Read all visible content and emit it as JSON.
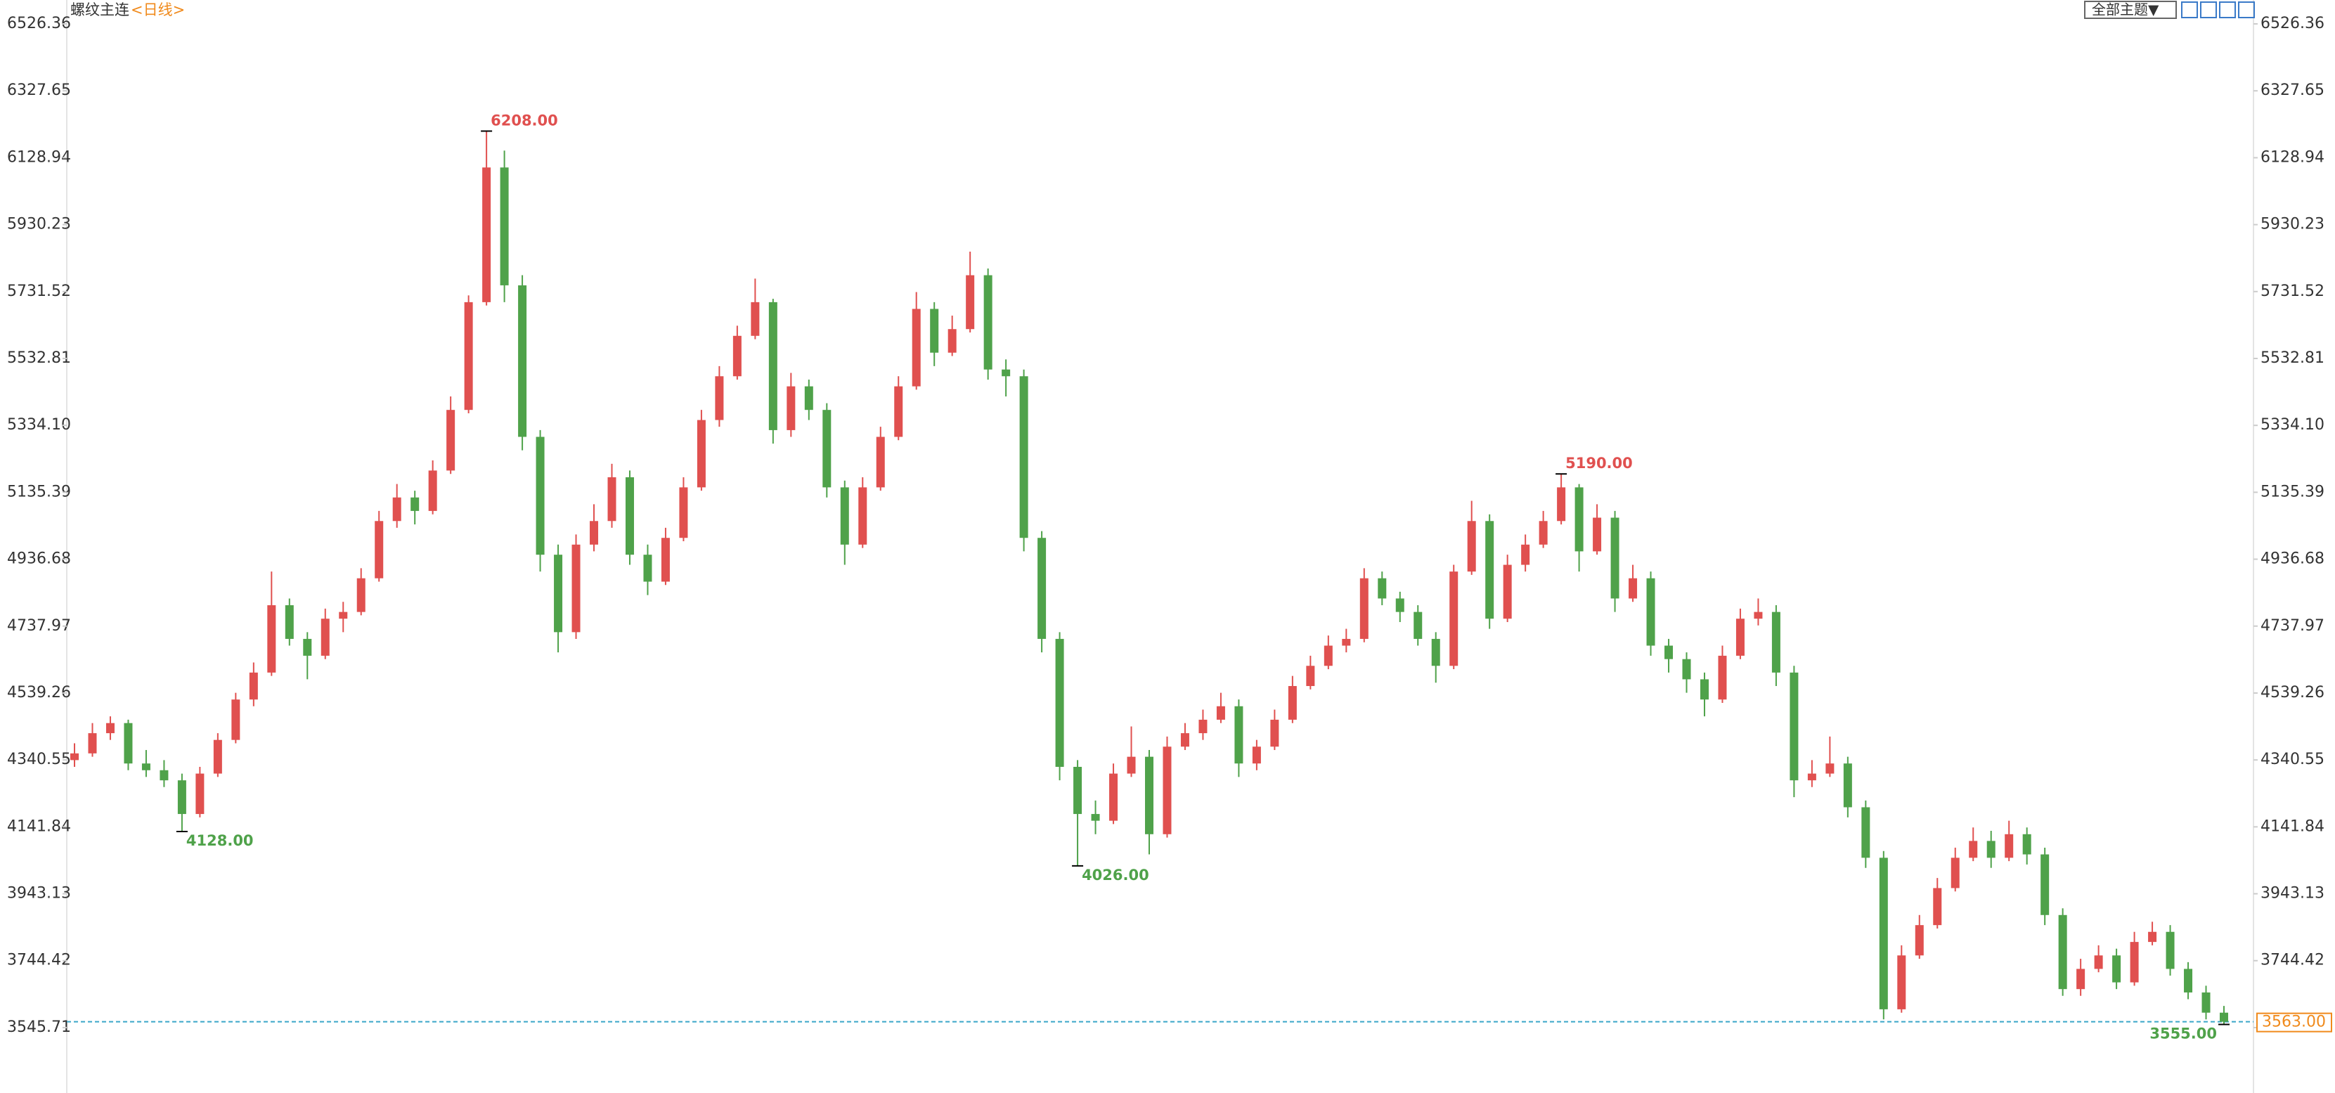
{
  "toolbar": {
    "theme_button": "全部主题▼"
  },
  "chart_data": {
    "type": "candlestick",
    "title": "螺纹主连",
    "subtitle": "<日线>",
    "up_color": "#e0504f",
    "down_color": "#4fa24a",
    "ylim": [
      3355.6,
      6526.36
    ],
    "yticks": [
      6526.36,
      6327.65,
      6128.94,
      5930.23,
      5731.52,
      5532.81,
      {
        "value": 5334.1,
        "label": "5334.10"
      },
      5135.39,
      4936.68,
      4737.97,
      4539.26,
      4340.55,
      4141.84,
      3943.13,
      3744.42,
      3545.71
    ],
    "grid": false,
    "annotations": [
      {
        "label": "6208.00",
        "value": 6208
      },
      {
        "label": "4128.00",
        "value": 4128
      },
      {
        "label": "4026.00",
        "value": 4026
      },
      {
        "label": "5190.00",
        "value": 5190
      },
      {
        "label": "3555.00",
        "value": 3555
      }
    ],
    "last_price": {
      "value": 3563,
      "label": "3563.00"
    },
    "ohlc": [
      [
        4340,
        4390,
        4320,
        4360
      ],
      [
        4360,
        4450,
        4350,
        4420
      ],
      [
        4420,
        4470,
        4400,
        4450
      ],
      [
        4450,
        4460,
        4310,
        4330
      ],
      [
        4330,
        4370,
        4290,
        4310
      ],
      [
        4310,
        4340,
        4260,
        4280
      ],
      [
        4280,
        4300,
        4128,
        4180
      ],
      [
        4180,
        4320,
        4170,
        4300
      ],
      [
        4300,
        4420,
        4290,
        4400
      ],
      [
        4400,
        4540,
        4390,
        4520
      ],
      [
        4520,
        4630,
        4500,
        4600
      ],
      [
        4600,
        4900,
        4590,
        4800
      ],
      [
        4800,
        4820,
        4680,
        4700
      ],
      [
        4700,
        4720,
        4580,
        4650
      ],
      [
        4650,
        4790,
        4640,
        4760
      ],
      [
        4760,
        4810,
        4720,
        4780
      ],
      [
        4780,
        4910,
        4770,
        4880
      ],
      [
        4880,
        5080,
        4870,
        5050
      ],
      [
        5050,
        5160,
        5030,
        5120
      ],
      [
        5120,
        5140,
        5040,
        5080
      ],
      [
        5080,
        5230,
        5070,
        5200
      ],
      [
        5200,
        5420,
        5190,
        5380
      ],
      [
        5380,
        5720,
        5370,
        5700
      ],
      [
        5700,
        6208,
        5690,
        6100
      ],
      [
        6100,
        6150,
        5700,
        5750
      ],
      [
        5750,
        5780,
        5260,
        5300
      ],
      [
        5300,
        5320,
        4900,
        4950
      ],
      [
        4950,
        4980,
        4660,
        4720
      ],
      [
        4720,
        5010,
        4700,
        4980
      ],
      [
        4980,
        5100,
        4960,
        5050
      ],
      [
        5050,
        5220,
        5030,
        5180
      ],
      [
        5180,
        5200,
        4920,
        4950
      ],
      [
        4950,
        4980,
        4830,
        4870
      ],
      [
        4870,
        5030,
        4860,
        5000
      ],
      [
        5000,
        5180,
        4990,
        5150
      ],
      [
        5150,
        5380,
        5140,
        5350
      ],
      [
        5350,
        5510,
        5330,
        5480
      ],
      [
        5480,
        5630,
        5470,
        5600
      ],
      [
        5600,
        5770,
        5590,
        5700
      ],
      [
        5700,
        5710,
        5280,
        5320
      ],
      [
        5320,
        5490,
        5300,
        5450
      ],
      [
        5450,
        5470,
        5350,
        5380
      ],
      [
        5380,
        5400,
        5120,
        5150
      ],
      [
        5150,
        5170,
        4920,
        4980
      ],
      [
        4980,
        5180,
        4970,
        5150
      ],
      [
        5150,
        5330,
        5140,
        5300
      ],
      [
        5300,
        5480,
        5290,
        5450
      ],
      [
        5450,
        5730,
        5440,
        5680
      ],
      [
        5680,
        5700,
        5510,
        5550
      ],
      [
        5550,
        5660,
        5540,
        5620
      ],
      [
        5620,
        5850,
        5610,
        5780
      ],
      [
        5780,
        5800,
        5470,
        5500
      ],
      [
        5500,
        5530,
        5420,
        5480
      ],
      [
        5480,
        5500,
        4960,
        5000
      ],
      [
        5000,
        5020,
        4660,
        4700
      ],
      [
        4700,
        4720,
        4280,
        4320
      ],
      [
        4320,
        4340,
        4026,
        4180
      ],
      [
        4180,
        4220,
        4120,
        4160
      ],
      [
        4160,
        4330,
        4150,
        4300
      ],
      [
        4300,
        4440,
        4290,
        4350
      ],
      [
        4350,
        4370,
        4060,
        4120
      ],
      [
        4120,
        4410,
        4110,
        4380
      ],
      [
        4380,
        4450,
        4370,
        4420
      ],
      [
        4420,
        4490,
        4400,
        4460
      ],
      [
        4460,
        4540,
        4450,
        4500
      ],
      [
        4500,
        4520,
        4290,
        4330
      ],
      [
        4330,
        4400,
        4310,
        4380
      ],
      [
        4380,
        4490,
        4370,
        4460
      ],
      [
        4460,
        4590,
        4450,
        4560
      ],
      [
        4560,
        4650,
        4550,
        4620
      ],
      [
        4620,
        4710,
        4610,
        4680
      ],
      [
        4680,
        4730,
        4660,
        4700
      ],
      [
        4700,
        4910,
        4690,
        4880
      ],
      [
        4880,
        4900,
        4800,
        4820
      ],
      [
        4820,
        4840,
        4750,
        4780
      ],
      [
        4780,
        4800,
        4680,
        4700
      ],
      [
        4700,
        4720,
        4570,
        4620
      ],
      [
        4620,
        4920,
        4610,
        4900
      ],
      [
        4900,
        5110,
        4890,
        5050
      ],
      [
        5050,
        5070,
        4730,
        4760
      ],
      [
        4760,
        4950,
        4750,
        4920
      ],
      [
        4920,
        5010,
        4900,
        4980
      ],
      [
        4980,
        5080,
        4970,
        5050
      ],
      [
        5050,
        5190,
        5040,
        5150
      ],
      [
        5150,
        5160,
        4900,
        4960
      ],
      [
        4960,
        5100,
        4950,
        5060
      ],
      [
        5060,
        5080,
        4780,
        4820
      ],
      [
        4820,
        4920,
        4810,
        4880
      ],
      [
        4880,
        4900,
        4650,
        4680
      ],
      [
        4680,
        4700,
        4600,
        4640
      ],
      [
        4640,
        4660,
        4540,
        4580
      ],
      [
        4580,
        4600,
        4470,
        4520
      ],
      [
        4520,
        4680,
        4510,
        4650
      ],
      [
        4650,
        4790,
        4640,
        4760
      ],
      [
        4760,
        4820,
        4740,
        4780
      ],
      [
        4780,
        4800,
        4560,
        4600
      ],
      [
        4600,
        4620,
        4230,
        4280
      ],
      [
        4280,
        4340,
        4260,
        4300
      ],
      [
        4300,
        4410,
        4290,
        4330
      ],
      [
        4330,
        4350,
        4170,
        4200
      ],
      [
        4200,
        4220,
        4020,
        4050
      ],
      [
        4050,
        4070,
        3570,
        3600
      ],
      [
        3600,
        3790,
        3590,
        3760
      ],
      [
        3760,
        3880,
        3750,
        3850
      ],
      [
        3850,
        3990,
        3840,
        3960
      ],
      [
        3960,
        4080,
        3950,
        4050
      ],
      [
        4050,
        4140,
        4040,
        4100
      ],
      [
        4100,
        4130,
        4020,
        4050
      ],
      [
        4050,
        4160,
        4040,
        4120
      ],
      [
        4120,
        4140,
        4030,
        4060
      ],
      [
        4060,
        4080,
        3850,
        3880
      ],
      [
        3880,
        3900,
        3640,
        3660
      ],
      [
        3660,
        3750,
        3640,
        3720
      ],
      [
        3720,
        3790,
        3710,
        3760
      ],
      [
        3760,
        3780,
        3660,
        3680
      ],
      [
        3680,
        3830,
        3670,
        3800
      ],
      [
        3800,
        3860,
        3790,
        3830
      ],
      [
        3830,
        3850,
        3700,
        3720
      ],
      [
        3720,
        3740,
        3630,
        3650
      ],
      [
        3650,
        3670,
        3570,
        3590
      ],
      [
        3590,
        3610,
        3555,
        3563
      ]
    ]
  }
}
